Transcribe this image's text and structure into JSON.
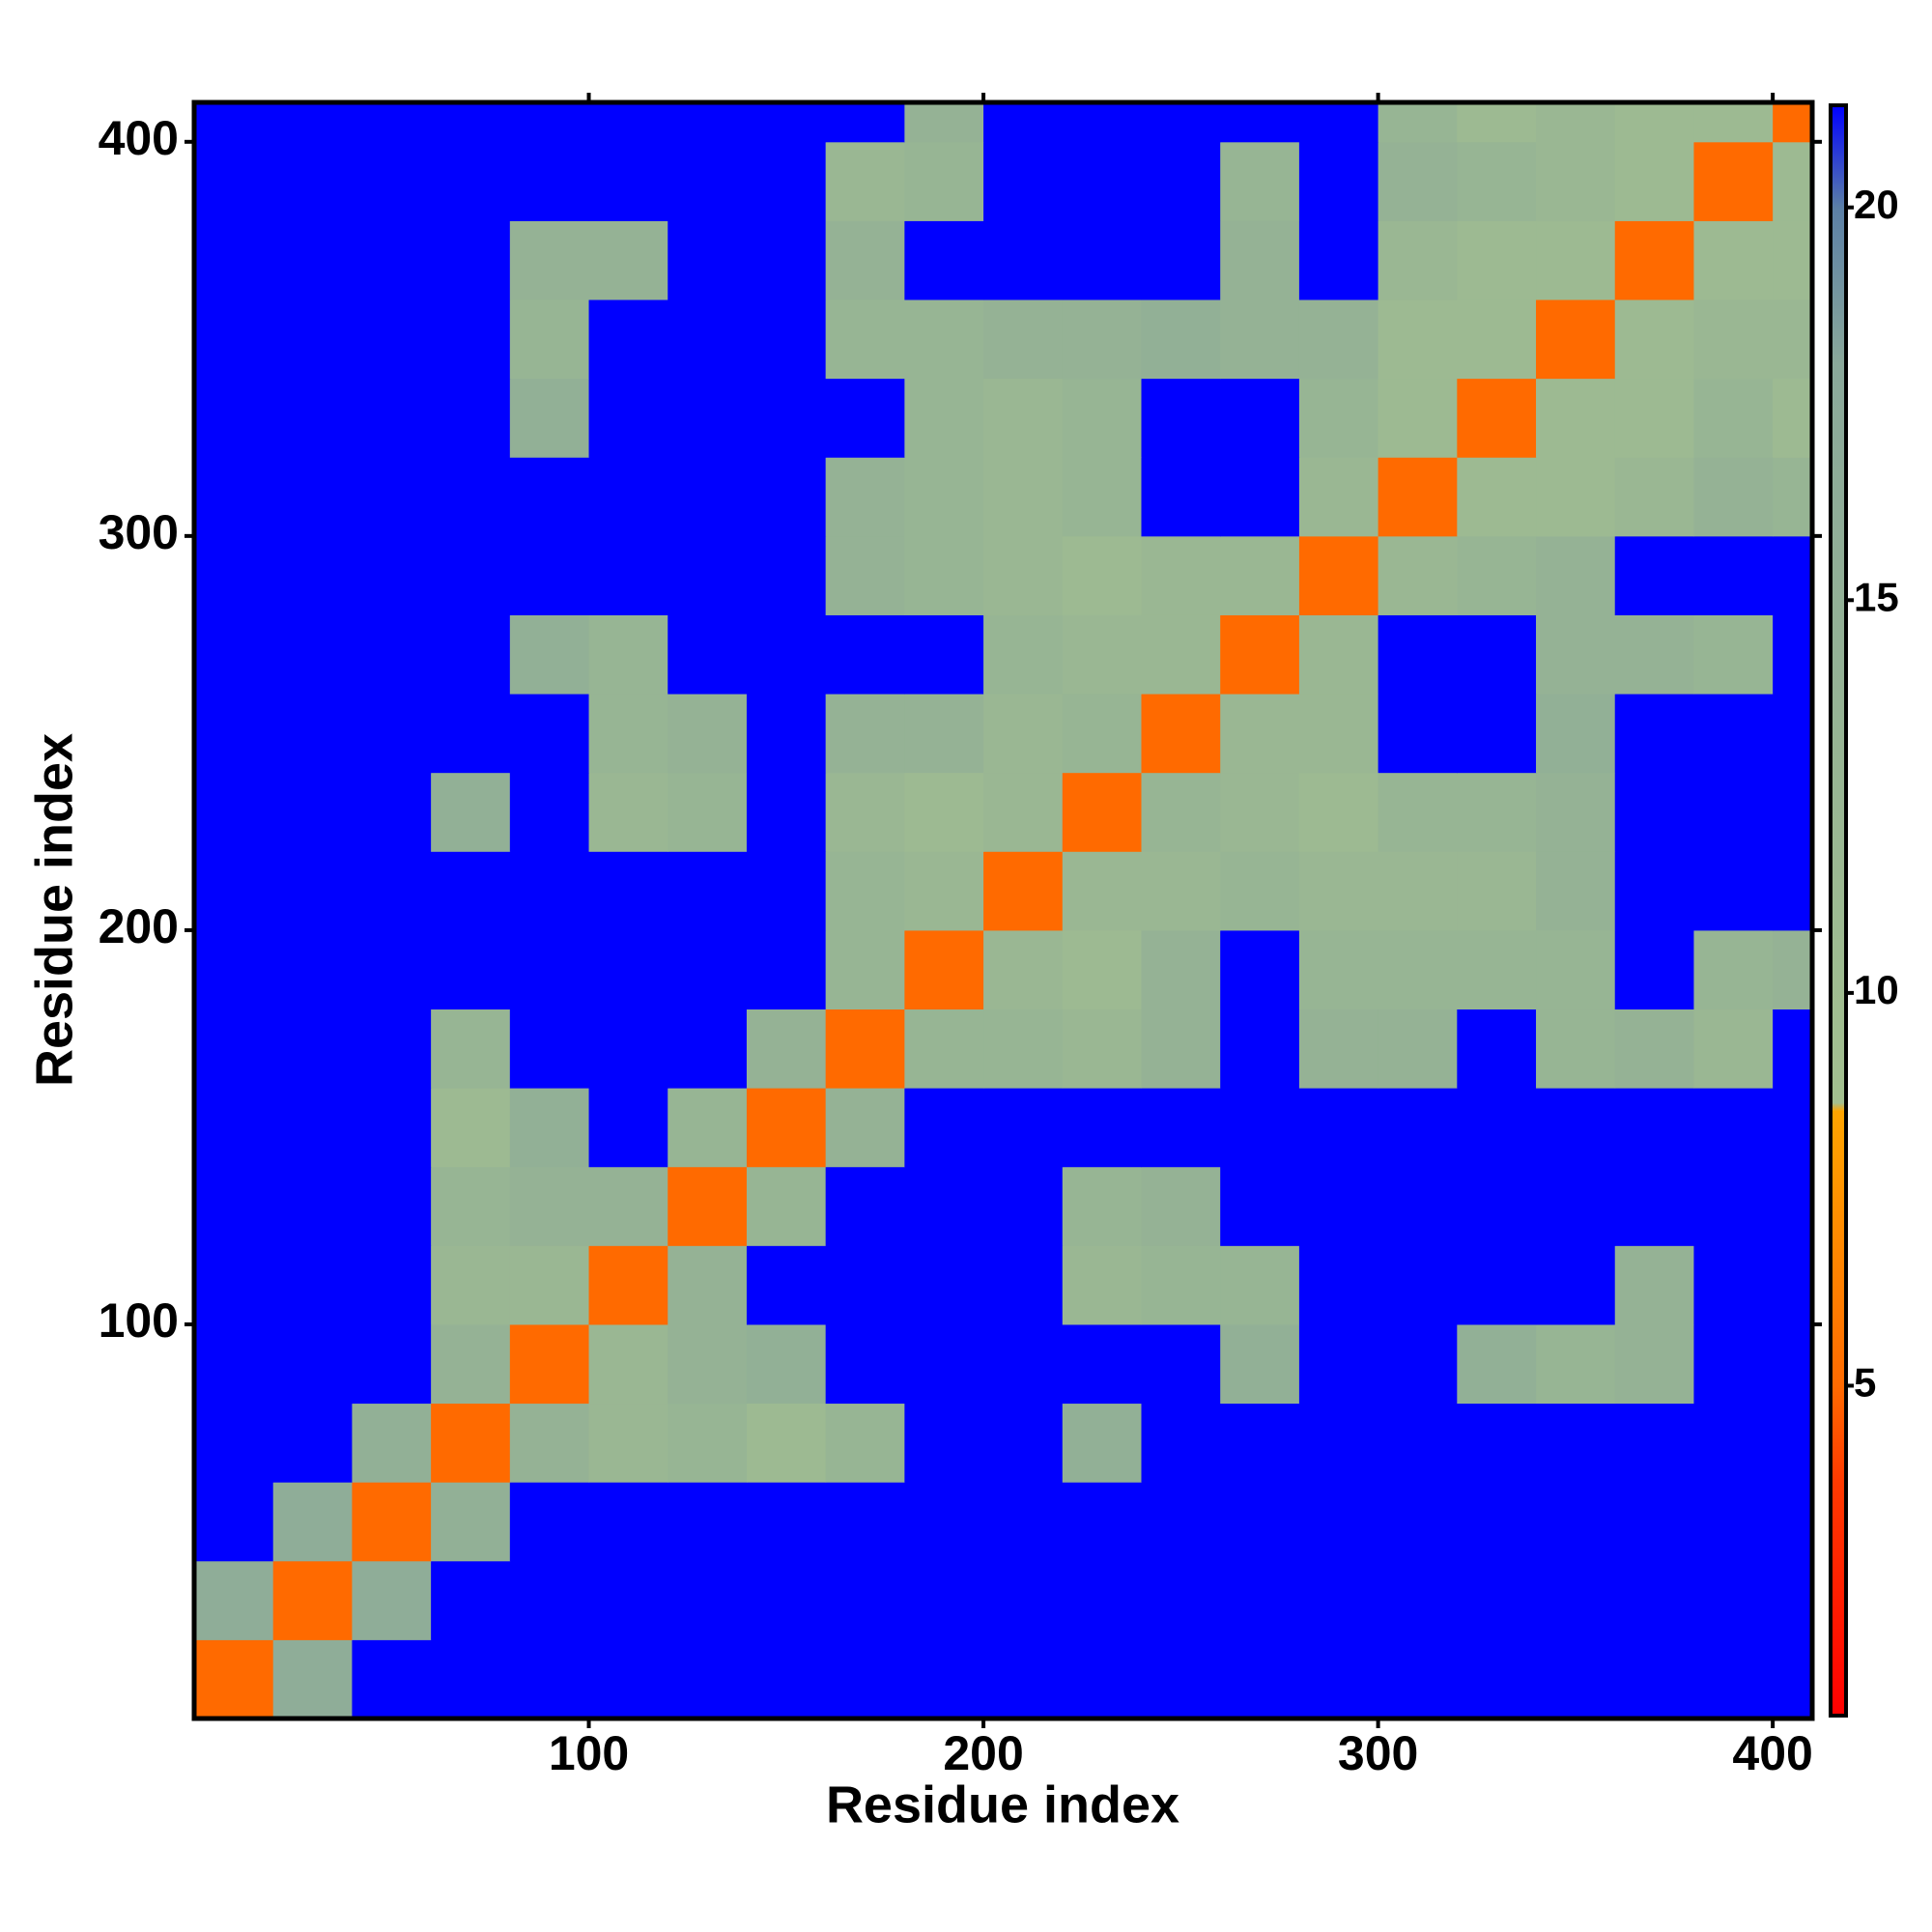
{
  "chart_data": {
    "type": "heatmap",
    "x_label": "Residue index",
    "y_label": "Residue index",
    "x_edges": [
      0,
      20,
      40,
      60,
      80,
      100,
      120,
      140,
      160,
      180,
      200,
      220,
      240,
      260,
      280,
      300,
      320,
      340,
      360,
      380,
      400,
      410
    ],
    "y_edges": [
      0,
      20,
      40,
      60,
      80,
      100,
      120,
      140,
      160,
      180,
      200,
      220,
      240,
      260,
      280,
      300,
      320,
      340,
      360,
      380,
      400,
      410
    ],
    "xlim": [
      0,
      410
    ],
    "ylim": [
      0,
      410
    ],
    "xticks": [
      100,
      200,
      300,
      400
    ],
    "yticks": [
      100,
      200,
      300,
      400
    ],
    "zlim": [
      0.8,
      21.3
    ],
    "zticks": [
      5,
      10,
      15,
      20
    ],
    "colorscale": [
      [
        0.8,
        "#ff0000"
      ],
      [
        3.8,
        "#ff3a00"
      ],
      [
        5,
        "#ff6a00"
      ],
      [
        8.5,
        "#ffa500"
      ],
      [
        8.6,
        "#a3c08f"
      ],
      [
        18,
        "#8aa89a"
      ],
      [
        20,
        "#5b7fa6"
      ],
      [
        21.3,
        "#0000ff"
      ]
    ],
    "z": [
      [
        5,
        16,
        21.3,
        21.3,
        21.3,
        21.3,
        21.3,
        21.3,
        21.3,
        21.3,
        21.3,
        21.3,
        21.3,
        21.3,
        21.3,
        21.3,
        21.3,
        21.3,
        21.3,
        21.3,
        21.3
      ],
      [
        16,
        5,
        16,
        21.3,
        21.3,
        21.3,
        21.3,
        21.3,
        21.3,
        21.3,
        21.3,
        21.3,
        21.3,
        21.3,
        21.3,
        21.3,
        21.3,
        21.3,
        21.3,
        21.3,
        21.3
      ],
      [
        21.3,
        16,
        5,
        15,
        21.3,
        21.3,
        21.3,
        21.3,
        21.3,
        21.3,
        21.3,
        21.3,
        21.3,
        21.3,
        21.3,
        21.3,
        21.3,
        21.3,
        21.3,
        21.3,
        21.3
      ],
      [
        21.3,
        21.3,
        15,
        5,
        14,
        12,
        13,
        11,
        13,
        21.3,
        21.3,
        15,
        21.3,
        21.3,
        21.3,
        21.3,
        21.3,
        21.3,
        21.3,
        21.3,
        21.3
      ],
      [
        21.3,
        21.3,
        21.3,
        14,
        5,
        12,
        14,
        15,
        21.3,
        21.3,
        21.3,
        21.3,
        21.3,
        15,
        21.3,
        21.3,
        15,
        13,
        14,
        21.3,
        21.3
      ],
      [
        21.3,
        21.3,
        21.3,
        12,
        12,
        5,
        14,
        21.3,
        21.3,
        21.3,
        21.3,
        12,
        13,
        13,
        21.3,
        21.3,
        21.3,
        21.3,
        14,
        21.3,
        21.3
      ],
      [
        21.3,
        21.3,
        21.3,
        13,
        14,
        14,
        5,
        13,
        21.3,
        21.3,
        21.3,
        13,
        14,
        21.3,
        21.3,
        21.3,
        21.3,
        21.3,
        21.3,
        21.3,
        21.3
      ],
      [
        21.3,
        21.3,
        21.3,
        11,
        15,
        21.3,
        13,
        5,
        14,
        21.3,
        21.3,
        21.3,
        21.3,
        21.3,
        21.3,
        21.3,
        21.3,
        21.3,
        21.3,
        21.3,
        21.3
      ],
      [
        21.3,
        21.3,
        21.3,
        13,
        21.3,
        21.3,
        21.3,
        14,
        5,
        13,
        13,
        12,
        14,
        21.3,
        14,
        14,
        21.3,
        13,
        14,
        12,
        21.3
      ],
      [
        21.3,
        21.3,
        21.3,
        21.3,
        21.3,
        21.3,
        21.3,
        21.3,
        13,
        5,
        12,
        11,
        14,
        21.3,
        13,
        13,
        13,
        13,
        21.3,
        13,
        14
      ],
      [
        21.3,
        21.3,
        21.3,
        21.3,
        21.3,
        21.3,
        21.3,
        21.3,
        13,
        12,
        5,
        12,
        12,
        13,
        12,
        12,
        12,
        14,
        21.3,
        21.3,
        21.3
      ],
      [
        21.3,
        21.3,
        21.3,
        15,
        21.3,
        12,
        13,
        21.3,
        12,
        11,
        12,
        5,
        13,
        12,
        11,
        13,
        13,
        14,
        21.3,
        21.3,
        21.3
      ],
      [
        21.3,
        21.3,
        21.3,
        21.3,
        21.3,
        13,
        14,
        21.3,
        14,
        14,
        12,
        13,
        5,
        12,
        12,
        21.3,
        21.3,
        15,
        21.3,
        21.3,
        21.3
      ],
      [
        21.3,
        21.3,
        21.3,
        21.3,
        15,
        13,
        21.3,
        21.3,
        21.3,
        21.3,
        13,
        12,
        12,
        5,
        12,
        21.3,
        21.3,
        14,
        14,
        13,
        21.3
      ],
      [
        21.3,
        21.3,
        21.3,
        21.3,
        21.3,
        21.3,
        21.3,
        21.3,
        14,
        13,
        12,
        11,
        12,
        12,
        5,
        12,
        13,
        14,
        21.3,
        21.3,
        21.3
      ],
      [
        21.3,
        21.3,
        21.3,
        21.3,
        21.3,
        21.3,
        21.3,
        21.3,
        14,
        13,
        12,
        13,
        21.3,
        21.3,
        12,
        5,
        11,
        11,
        12,
        14,
        13
      ],
      [
        21.3,
        21.3,
        21.3,
        21.3,
        15,
        21.3,
        21.3,
        21.3,
        21.3,
        13,
        12,
        13,
        21.3,
        21.3,
        13,
        11,
        5,
        11,
        11,
        13,
        11
      ],
      [
        21.3,
        21.3,
        21.3,
        21.3,
        13,
        21.3,
        21.3,
        21.3,
        13,
        13,
        14,
        14,
        15,
        14,
        14,
        11,
        11,
        5,
        11,
        12,
        12
      ],
      [
        21.3,
        21.3,
        21.3,
        21.3,
        14,
        14,
        21.3,
        21.3,
        14,
        21.3,
        21.3,
        21.3,
        21.3,
        14,
        21.3,
        12,
        11,
        11,
        5,
        11,
        11
      ],
      [
        21.3,
        21.3,
        21.3,
        21.3,
        21.3,
        21.3,
        21.3,
        21.3,
        12,
        13,
        21.3,
        21.3,
        21.3,
        13,
        21.3,
        14,
        13,
        12,
        11,
        5,
        11
      ],
      [
        21.3,
        21.3,
        21.3,
        21.3,
        21.3,
        21.3,
        21.3,
        21.3,
        21.3,
        14,
        21.3,
        21.3,
        21.3,
        21.3,
        21.3,
        13,
        11,
        12,
        11,
        11,
        5
      ]
    ]
  }
}
